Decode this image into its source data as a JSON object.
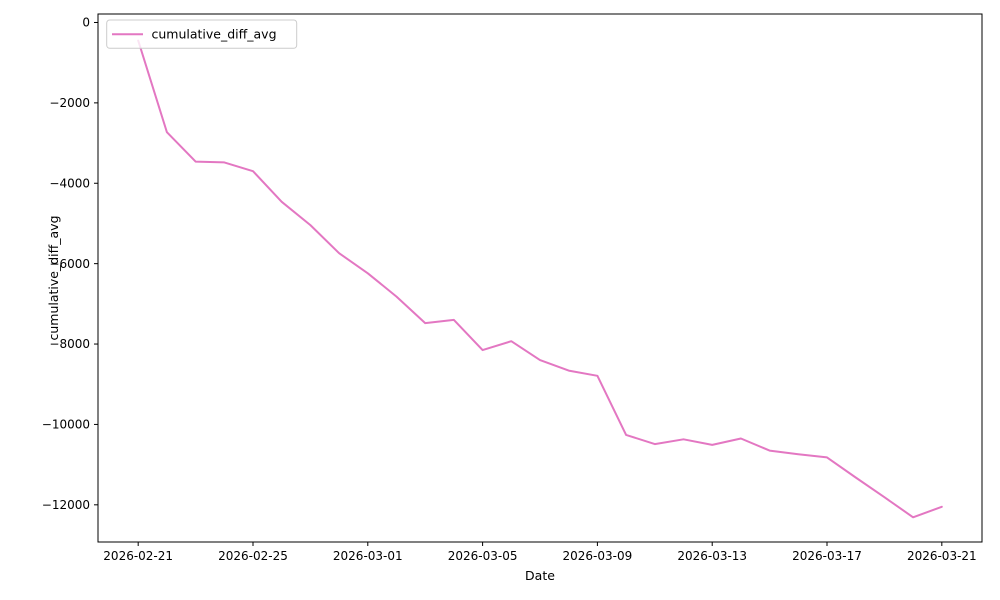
{
  "figure": {
    "background": "#ffffff",
    "axes_color": "#000000",
    "legend": {
      "label": "cumulative_diff_avg",
      "border_color": "#cccccc",
      "fill_color": "#ffffff",
      "fill_opacity": 0.8
    }
  },
  "chart_data": {
    "type": "line",
    "title": "",
    "xlabel": "Date",
    "ylabel": "cumulative_diff_avg",
    "grid": false,
    "legend_position": "upper left",
    "line_color": "#e377c2",
    "line_width": 2,
    "x": [
      "2026-02-21",
      "2026-02-22",
      "2026-02-23",
      "2026-02-24",
      "2026-02-25",
      "2026-02-26",
      "2026-02-27",
      "2026-02-28",
      "2026-03-01",
      "2026-03-02",
      "2026-03-03",
      "2026-03-04",
      "2026-03-05",
      "2026-03-06",
      "2026-03-07",
      "2026-03-08",
      "2026-03-09",
      "2026-03-10",
      "2026-03-11",
      "2026-03-12",
      "2026-03-13",
      "2026-03-14",
      "2026-03-15",
      "2026-03-16",
      "2026-03-17",
      "2026-03-18",
      "2026-03-19",
      "2026-03-20",
      "2026-03-21"
    ],
    "series": [
      {
        "name": "cumulative_diff_avg",
        "color": "#e377c2",
        "values": [
          -450,
          -2730,
          -3460,
          -3480,
          -3700,
          -4460,
          -5040,
          -5740,
          -6240,
          -6820,
          -7480,
          -7400,
          -8150,
          -7930,
          -8400,
          -8660,
          -8790,
          -10260,
          -10490,
          -10370,
          -10510,
          -10350,
          -10650,
          -10740,
          -10820,
          -11320,
          -11810,
          -12310,
          -12050
        ]
      }
    ],
    "xlim_days": [
      -1.4,
      29.4
    ],
    "ylim": [
      -12925,
      211
    ],
    "x_ticks": [
      {
        "index": 0,
        "label": "2026-02-21"
      },
      {
        "index": 4,
        "label": "2026-02-25"
      },
      {
        "index": 8,
        "label": "2026-03-01"
      },
      {
        "index": 12,
        "label": "2026-03-05"
      },
      {
        "index": 16,
        "label": "2026-03-09"
      },
      {
        "index": 20,
        "label": "2026-03-13"
      },
      {
        "index": 24,
        "label": "2026-03-17"
      },
      {
        "index": 28,
        "label": "2026-03-21"
      }
    ],
    "y_ticks": [
      {
        "value": 0,
        "label": "0"
      },
      {
        "value": -2000,
        "label": "−2000"
      },
      {
        "value": -4000,
        "label": "−4000"
      },
      {
        "value": -6000,
        "label": "−6000"
      },
      {
        "value": -8000,
        "label": "−8000"
      },
      {
        "value": -10000,
        "label": "−10000"
      },
      {
        "value": -12000,
        "label": "−12000"
      }
    ]
  }
}
